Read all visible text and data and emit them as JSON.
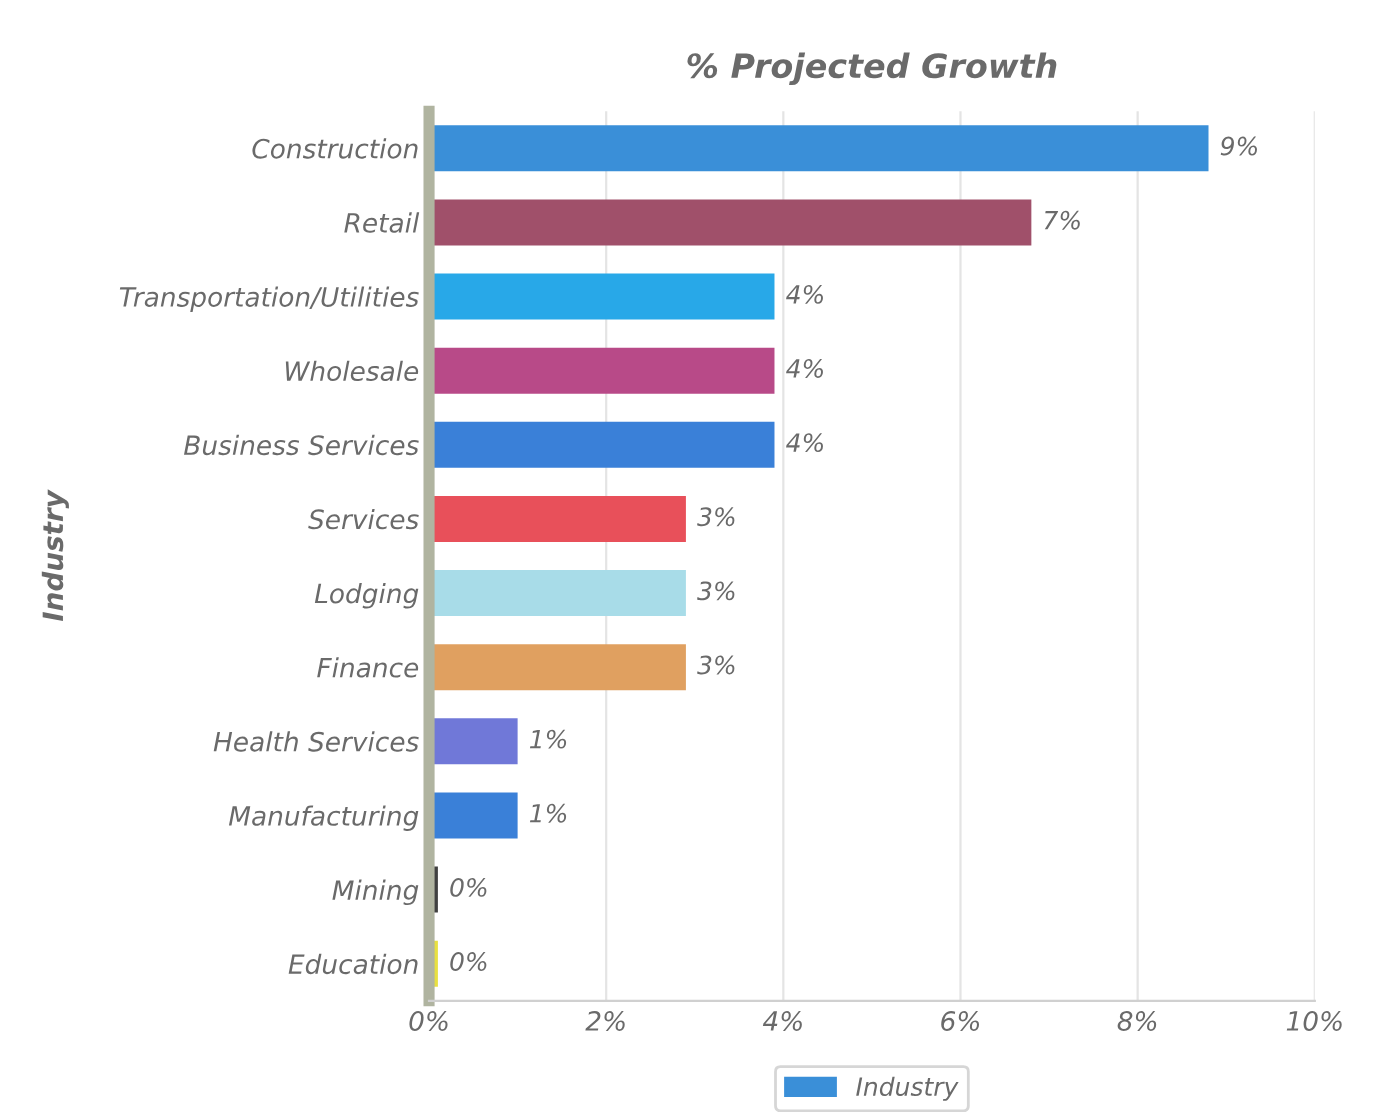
{
  "chart_data": {
    "type": "bar",
    "orientation": "horizontal",
    "title": "% Projected Growth",
    "ylabel": "Industry",
    "categories": [
      "Construction",
      "Retail",
      "Transportation/Utilities",
      "Wholesale",
      "Business Services",
      "Services",
      "Lodging",
      "Finance",
      "Health Services",
      "Manufacturing",
      "Mining",
      "Education"
    ],
    "series": [
      {
        "name": "Industry",
        "color": "#3a8fd8",
        "values": [
          8.8,
          6.8,
          3.9,
          3.9,
          3.9,
          2.9,
          2.9,
          2.9,
          1.0,
          1.0,
          0.1,
          0.1
        ],
        "colors": [
          "#3a8fd8",
          "#a0506a",
          "#28a8e8",
          "#b84a88",
          "#3a80d8",
          "#e8505a",
          "#a8dce8",
          "#e0a060",
          "#7078d8",
          "#3a80d8",
          "#404040",
          "#e8e040"
        ],
        "value_labels": [
          "9%",
          "7%",
          "4%",
          "4%",
          "4%",
          "3%",
          "3%",
          "3%",
          "1%",
          "1%",
          "0%",
          "0%"
        ]
      }
    ],
    "xlim": [
      0,
      10
    ],
    "xticks": [
      {
        "value": 0,
        "label": "0%"
      },
      {
        "value": 2,
        "label": "2%"
      },
      {
        "value": 4,
        "label": "4%"
      },
      {
        "value": 6,
        "label": "6%"
      },
      {
        "value": 8,
        "label": "8%"
      },
      {
        "value": 10,
        "label": "10%"
      }
    ],
    "grid": "x",
    "legend": "bottom"
  }
}
